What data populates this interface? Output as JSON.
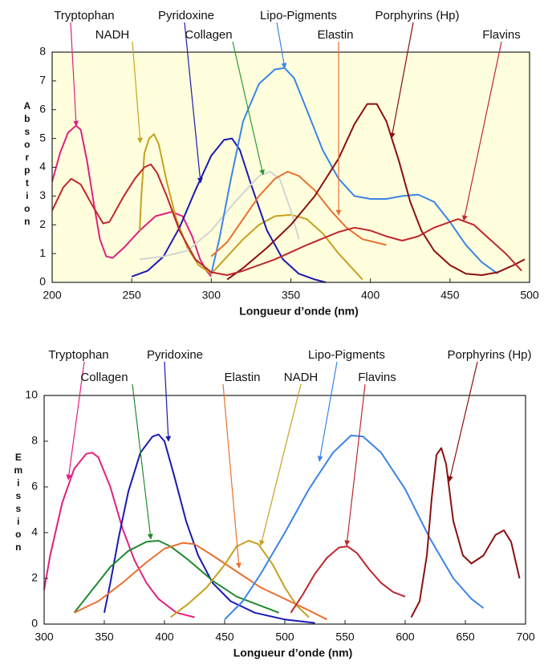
{
  "chart_data": [
    {
      "type": "line",
      "xlabel": "Longueur d’onde (nm)",
      "ylabel": "Absorption",
      "background": "#ffffdd",
      "xlim": [
        200,
        500
      ],
      "xticks": [
        200,
        250,
        300,
        350,
        400,
        450,
        500
      ],
      "ylim": [
        0,
        8
      ],
      "yticks": [
        0,
        1,
        2,
        3,
        4,
        5,
        6,
        7,
        8
      ],
      "series": [
        {
          "name": "Tryptophan",
          "color": "#e0207f",
          "x": [
            200,
            205,
            210,
            215,
            218,
            222,
            226,
            230,
            234,
            238,
            245,
            255,
            265,
            275,
            282,
            288,
            293,
            297,
            300
          ],
          "values": [
            3.5,
            4.5,
            5.2,
            5.45,
            5.3,
            4.2,
            2.8,
            1.5,
            0.9,
            0.85,
            1.2,
            1.8,
            2.3,
            2.45,
            2.3,
            1.6,
            0.8,
            0.4,
            0.2
          ]
        },
        {
          "name": "NADH",
          "color": "#c8a020",
          "x": [
            255,
            256,
            258,
            261,
            264,
            267,
            272,
            278,
            285,
            292,
            300,
            310,
            320,
            330,
            340,
            350,
            360,
            370,
            380,
            390,
            395
          ],
          "values": [
            1.8,
            3.0,
            4.5,
            5.0,
            5.15,
            4.8,
            3.5,
            2.2,
            1.2,
            0.6,
            0.3,
            0.9,
            1.5,
            2.0,
            2.3,
            2.35,
            2.2,
            1.7,
            1.0,
            0.4,
            0.1
          ]
        },
        {
          "name": "Pyridoxine",
          "color": "#1a1ab0",
          "x": [
            250,
            260,
            270,
            280,
            290,
            300,
            308,
            313,
            318,
            325,
            335,
            345,
            355,
            365,
            372
          ],
          "values": [
            0.2,
            0.4,
            0.9,
            1.9,
            3.2,
            4.4,
            4.95,
            5.0,
            4.6,
            3.4,
            1.8,
            0.8,
            0.3,
            0.1,
            0
          ]
        },
        {
          "name": "Collagen",
          "color": "#2a9a3a",
          "line_color": "#d4d4d4",
          "x": [
            255,
            270,
            285,
            300,
            315,
            330,
            337,
            343,
            350,
            355
          ],
          "values": [
            0.8,
            0.9,
            1.1,
            1.8,
            2.8,
            3.7,
            3.85,
            3.6,
            2.5,
            1.5
          ]
        },
        {
          "name": "Lipo-Pigments",
          "color": "#3b84e8",
          "x": [
            300,
            305,
            312,
            320,
            330,
            340,
            346,
            352,
            360,
            370,
            380,
            390,
            400,
            410,
            420,
            430,
            440,
            450,
            460,
            470,
            480
          ],
          "values": [
            0.3,
            1.5,
            3.5,
            5.6,
            6.9,
            7.4,
            7.45,
            7.1,
            6.0,
            4.6,
            3.6,
            3.0,
            2.9,
            2.9,
            3.0,
            3.05,
            2.8,
            2.1,
            1.3,
            0.7,
            0.3
          ]
        },
        {
          "name": "Elastin",
          "color": "#e87030",
          "x": [
            300,
            310,
            320,
            330,
            340,
            348,
            355,
            365,
            375,
            385,
            395,
            410
          ],
          "values": [
            0.9,
            1.4,
            2.2,
            3.0,
            3.6,
            3.85,
            3.7,
            3.2,
            2.5,
            1.9,
            1.5,
            1.3
          ]
        },
        {
          "name": "Porphyrins (Hp)",
          "color": "#8b1010",
          "x": [
            310,
            320,
            335,
            350,
            365,
            380,
            390,
            398,
            404,
            410,
            418,
            425,
            432,
            440,
            450,
            460,
            470,
            480,
            490,
            497
          ],
          "values": [
            0.1,
            0.5,
            1.2,
            2.0,
            3.0,
            4.3,
            5.5,
            6.2,
            6.2,
            5.6,
            4.2,
            2.8,
            1.8,
            1.1,
            0.6,
            0.3,
            0.25,
            0.35,
            0.6,
            0.8
          ]
        },
        {
          "name": "Flavins",
          "color": "#c0262d",
          "x": [
            200,
            207,
            212,
            218,
            225,
            232,
            236,
            245,
            252,
            258,
            262,
            266,
            272,
            280,
            290,
            300,
            310,
            320,
            340,
            360,
            380,
            390,
            400,
            410,
            420,
            430,
            440,
            455,
            465,
            475,
            485,
            495
          ],
          "values": [
            2.5,
            3.3,
            3.6,
            3.4,
            2.7,
            2.05,
            2.1,
            3.0,
            3.6,
            4.0,
            4.1,
            3.8,
            3.0,
            1.8,
            0.8,
            0.35,
            0.25,
            0.4,
            0.8,
            1.3,
            1.75,
            1.9,
            1.8,
            1.6,
            1.45,
            1.6,
            1.9,
            2.2,
            2.0,
            1.5,
            1.0,
            0.4
          ]
        }
      ]
    },
    {
      "type": "line",
      "xlabel": "Longueur d’onde (nm)",
      "ylabel": "Emission",
      "background": "#ffffff",
      "xlim": [
        300,
        700
      ],
      "xticks": [
        300,
        350,
        400,
        450,
        500,
        550,
        600,
        650,
        700
      ],
      "ylim": [
        0,
        10
      ],
      "yticks": [
        0,
        2,
        4,
        6,
        8,
        10
      ],
      "series": [
        {
          "name": "Tryptophan",
          "color": "#e0207f",
          "x": [
            300,
            305,
            315,
            325,
            335,
            340,
            345,
            355,
            365,
            375,
            385,
            395,
            410,
            425
          ],
          "values": [
            1.5,
            3.0,
            5.3,
            6.8,
            7.45,
            7.5,
            7.3,
            6.0,
            4.2,
            2.8,
            1.8,
            1.1,
            0.5,
            0.3
          ]
        },
        {
          "name": "Pyridoxine",
          "color": "#1a1ab0",
          "x": [
            350,
            355,
            362,
            370,
            380,
            390,
            395,
            400,
            408,
            418,
            428,
            440,
            455,
            475,
            500,
            525
          ],
          "values": [
            0.5,
            1.8,
            3.8,
            5.8,
            7.5,
            8.2,
            8.3,
            8.0,
            6.5,
            4.5,
            3.0,
            1.8,
            1.0,
            0.5,
            0.2,
            0.05
          ]
        },
        {
          "name": "Collagen",
          "color": "#208a30",
          "x": [
            325,
            340,
            355,
            370,
            385,
            395,
            405,
            420,
            440,
            460,
            480,
            495
          ],
          "values": [
            0.5,
            1.5,
            2.5,
            3.2,
            3.6,
            3.65,
            3.4,
            2.8,
            1.9,
            1.2,
            0.8,
            0.5
          ]
        },
        {
          "name": "Elastin",
          "color": "#e87030",
          "x": [
            325,
            345,
            365,
            385,
            400,
            415,
            425,
            440,
            460,
            480,
            500,
            520,
            535
          ],
          "values": [
            0.5,
            1.0,
            1.8,
            2.7,
            3.3,
            3.55,
            3.5,
            3.0,
            2.3,
            1.6,
            1.1,
            0.6,
            0.2
          ]
        },
        {
          "name": "NADH",
          "color": "#c8a020",
          "x": [
            405,
            420,
            435,
            450,
            460,
            470,
            478,
            490,
            500,
            510,
            520
          ],
          "values": [
            0.3,
            0.9,
            1.6,
            2.6,
            3.4,
            3.65,
            3.5,
            2.6,
            1.6,
            0.8,
            0.3
          ]
        },
        {
          "name": "Lipo-Pigments",
          "color": "#3b84e8",
          "x": [
            450,
            465,
            480,
            500,
            520,
            540,
            555,
            565,
            580,
            600,
            620,
            640,
            655,
            665
          ],
          "values": [
            0.2,
            1.0,
            2.2,
            4.0,
            5.9,
            7.5,
            8.25,
            8.2,
            7.5,
            5.9,
            3.8,
            2.0,
            1.1,
            0.7
          ]
        },
        {
          "name": "Flavins",
          "color": "#c0262d",
          "x": [
            505,
            515,
            525,
            535,
            545,
            552,
            560,
            570,
            580,
            590,
            600
          ],
          "values": [
            0.5,
            1.3,
            2.2,
            2.9,
            3.35,
            3.4,
            3.1,
            2.4,
            1.8,
            1.4,
            1.2
          ]
        },
        {
          "name": "Porphyrins (Hp)",
          "color": "#8b1010",
          "x": [
            605,
            612,
            618,
            622,
            626,
            630,
            634,
            640,
            648,
            655,
            665,
            675,
            682,
            688,
            695
          ],
          "values": [
            0.3,
            1.0,
            3.0,
            5.5,
            7.4,
            7.7,
            7.0,
            4.5,
            3.0,
            2.65,
            3.0,
            3.9,
            4.1,
            3.6,
            2.0
          ]
        }
      ]
    }
  ]
}
